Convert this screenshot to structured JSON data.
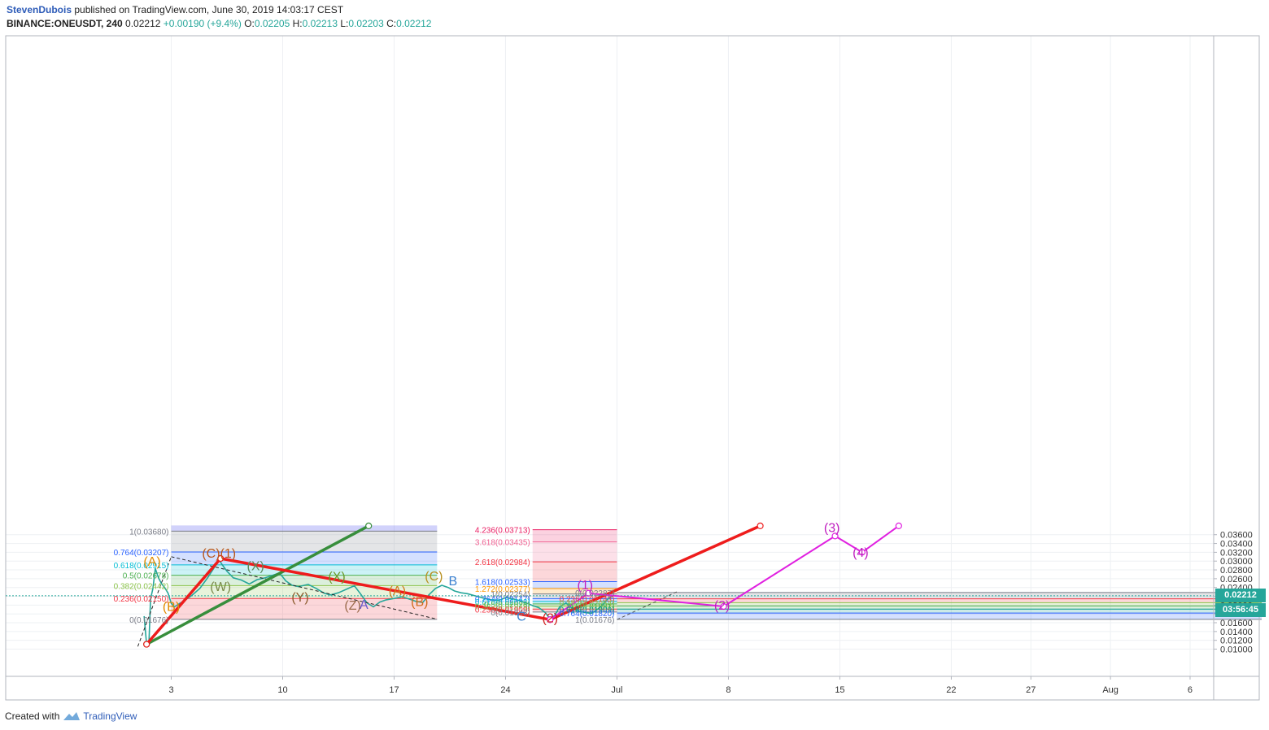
{
  "header": {
    "author": "StevenDubois",
    "published": "published on TradingView.com, June 30, 2019 14:03:17 CEST",
    "symbol": "BINANCE:ONEUSDT, 240",
    "last": "0.02212",
    "change": "+0.00190 (+9.4%)",
    "o_label": "O:",
    "o_value": "0.02205",
    "h_label": "H:",
    "h_value": "0.02213",
    "l_label": "L:",
    "l_value": "0.02203",
    "c_label": "C:",
    "c_value": "0.02212"
  },
  "footer": {
    "created_with": "Created with",
    "brand": "TradingView"
  },
  "price_tag": {
    "price": "0.02212",
    "countdown": "03:56:45",
    "price_color": "#26a69a",
    "countdown_color": "#26a69a"
  },
  "chart_data": {
    "type": "line",
    "title": "",
    "symbol": "BINANCE:ONEUSDT",
    "interval": "240",
    "y_axis": {
      "position": "right",
      "ylim": [
        0.0091,
        0.0381
      ],
      "ticks": [
        "0.03600",
        "0.03400",
        "0.03200",
        "0.03000",
        "0.02800",
        "0.02600",
        "0.02400",
        "0.02200",
        "0.02000",
        "0.01800",
        "0.01600",
        "0.01400",
        "0.01200",
        "0.01000"
      ]
    },
    "x_axis": {
      "ticks": [
        {
          "label": "3",
          "day": 3
        },
        {
          "label": "10",
          "day": 10
        },
        {
          "label": "17",
          "day": 17
        },
        {
          "label": "24",
          "day": 24
        },
        {
          "label": "Jul",
          "day": 31
        },
        {
          "label": "8",
          "day": 38
        },
        {
          "label": "15",
          "day": 45
        },
        {
          "label": "22",
          "day": 52
        },
        {
          "label": "27",
          "day": 57
        },
        {
          "label": "Aug",
          "day": 62
        },
        {
          "label": "6",
          "day": 67
        }
      ]
    },
    "grid": true,
    "last_price_line": 0.02212,
    "price_path": [
      [
        1.3,
        0.0175
      ],
      [
        1.45,
        0.0111
      ],
      [
        1.6,
        0.0115
      ],
      [
        1.7,
        0.0214
      ],
      [
        1.85,
        0.0238
      ],
      [
        2.0,
        0.0283
      ],
      [
        2.2,
        0.0262
      ],
      [
        2.4,
        0.0248
      ],
      [
        2.6,
        0.0239
      ],
      [
        2.8,
        0.0227
      ],
      [
        3.0,
        0.0204
      ],
      [
        3.2,
        0.0196
      ],
      [
        3.5,
        0.0203
      ],
      [
        3.9,
        0.0212
      ],
      [
        4.3,
        0.0222
      ],
      [
        4.8,
        0.0238
      ],
      [
        5.3,
        0.0263
      ],
      [
        5.7,
        0.0285
      ],
      [
        6.0,
        0.0303
      ],
      [
        6.2,
        0.0292
      ],
      [
        6.5,
        0.0277
      ],
      [
        6.9,
        0.0262
      ],
      [
        7.4,
        0.0257
      ],
      [
        7.9,
        0.0248
      ],
      [
        8.4,
        0.0258
      ],
      [
        8.9,
        0.0262
      ],
      [
        9.4,
        0.0268
      ],
      [
        9.8,
        0.0273
      ],
      [
        10.2,
        0.0255
      ],
      [
        10.6,
        0.0245
      ],
      [
        11.0,
        0.0242
      ],
      [
        11.6,
        0.0247
      ],
      [
        12.1,
        0.0238
      ],
      [
        12.6,
        0.0227
      ],
      [
        13.0,
        0.0223
      ],
      [
        13.5,
        0.0228
      ],
      [
        14.0,
        0.0236
      ],
      [
        14.5,
        0.0244
      ],
      [
        14.9,
        0.0225
      ],
      [
        15.3,
        0.0205
      ],
      [
        15.7,
        0.0196
      ],
      [
        16.1,
        0.0207
      ],
      [
        16.5,
        0.0212
      ],
      [
        17.0,
        0.0215
      ],
      [
        17.5,
        0.0219
      ],
      [
        18.0,
        0.0213
      ],
      [
        18.4,
        0.0208
      ],
      [
        18.8,
        0.0206
      ],
      [
        19.2,
        0.0224
      ],
      [
        19.6,
        0.0238
      ],
      [
        20.0,
        0.0245
      ],
      [
        20.4,
        0.024
      ],
      [
        20.8,
        0.0232
      ],
      [
        21.2,
        0.0228
      ],
      [
        21.6,
        0.0226
      ],
      [
        22.1,
        0.0221
      ],
      [
        22.6,
        0.0216
      ],
      [
        23.1,
        0.0212
      ],
      [
        23.6,
        0.0211
      ],
      [
        24.0,
        0.0217
      ],
      [
        24.5,
        0.0214
      ],
      [
        24.9,
        0.021
      ],
      [
        25.3,
        0.0205
      ],
      [
        25.7,
        0.0199
      ],
      [
        26.1,
        0.0194
      ],
      [
        26.5,
        0.0183
      ],
      [
        26.8,
        0.0168
      ],
      [
        27.1,
        0.0177
      ],
      [
        27.4,
        0.0196
      ],
      [
        27.8,
        0.0205
      ],
      [
        28.2,
        0.0192
      ],
      [
        28.6,
        0.0186
      ],
      [
        29.0,
        0.0183
      ],
      [
        29.4,
        0.0181
      ],
      [
        29.8,
        0.0191
      ],
      [
        30.1,
        0.0201
      ],
      [
        30.4,
        0.0213
      ],
      [
        30.7,
        0.0221
      ]
    ],
    "fib_retracement_1": {
      "range_days": [
        3,
        19.7
      ],
      "levels": [
        {
          "label": "1(0.03680)",
          "price": 0.0368,
          "color": "#787b86"
        },
        {
          "label": "0.764(0.03207)",
          "price": 0.03207,
          "color": "#2962ff"
        },
        {
          "label": "0.618(0.02915)",
          "price": 0.02915,
          "color": "#00bcd4"
        },
        {
          "label": "0.5(0.02678)",
          "price": 0.02678,
          "color": "#4caf50"
        },
        {
          "label": "0.382(0.02442)",
          "price": 0.02442,
          "color": "#8bc34a"
        },
        {
          "label": "0.236(0.02150)",
          "price": 0.0215,
          "color": "#f23645"
        },
        {
          "label": "0(0.01676)",
          "price": 0.01676,
          "color": "#787b86"
        }
      ]
    },
    "fib_extension_right": {
      "range_days": [
        25.7,
        31.0
      ],
      "levels": [
        {
          "label": "4.236(0.03713)",
          "price": 0.03713,
          "color": "#e91e63"
        },
        {
          "label": "3.618(0.03435)",
          "price": 0.03435,
          "color": "#f06292"
        },
        {
          "label": "2.618(0.02984)",
          "price": 0.02984,
          "color": "#f23645"
        },
        {
          "label": "1.618(0.02533)",
          "price": 0.02533,
          "color": "#2962ff"
        },
        {
          "label": "1.272(0.02377)",
          "price": 0.02377,
          "color": "#ff9800"
        },
        {
          "label": "1(0.02254)",
          "price": 0.02254,
          "color": "#787b86"
        },
        {
          "label": "0.764(0.02147)",
          "price": 0.02147,
          "color": "#2962ff"
        },
        {
          "label": "0.618(0.02082)",
          "price": 0.02082,
          "color": "#00bcd4"
        },
        {
          "label": "0.5(0.02028)",
          "price": 0.02028,
          "color": "#4caf50"
        },
        {
          "label": "0.382(0.01975)",
          "price": 0.01975,
          "color": "#8bc34a"
        },
        {
          "label": "0.236(0.01909)",
          "price": 0.01909,
          "color": "#f23645"
        },
        {
          "label": "0(0.01843)",
          "price": 0.01843,
          "color": "#787b86"
        }
      ]
    },
    "fib_retracement_2": {
      "range_days": [
        31.0,
        71.5
      ],
      "levels": [
        {
          "label": "0(0.02287)",
          "price": 0.02287,
          "color": "#787b86"
        },
        {
          "label": "0.236(0.02143)",
          "price": 0.02143,
          "color": "#f23645"
        },
        {
          "label": "0.382(0.02054)",
          "price": 0.02054,
          "color": "#8bc34a"
        },
        {
          "label": "0.5(0.01981)",
          "price": 0.01981,
          "color": "#4caf50"
        },
        {
          "label": "0.618(0.01909)",
          "price": 0.01909,
          "color": "#009688"
        },
        {
          "label": "0.764(0.01820)",
          "price": 0.0182,
          "color": "#2962ff"
        },
        {
          "label": "1(0.01676)",
          "price": 0.01676,
          "color": "#787b86"
        }
      ]
    },
    "trend_lines": [
      {
        "name": "green",
        "color": "#388e3c",
        "points": [
          [
            1.45,
            0.0111
          ],
          [
            15.4,
            0.038
          ]
        ]
      },
      {
        "name": "red",
        "color": "#ee1c1c",
        "points": [
          [
            1.45,
            0.0111
          ],
          [
            6.1,
            0.0306
          ],
          [
            26.8,
            0.0167
          ],
          [
            40.0,
            0.038
          ]
        ]
      },
      {
        "name": "magenta",
        "color": "#e020e0",
        "points": [
          [
            26.8,
            0.0167
          ],
          [
            29.2,
            0.0227
          ],
          [
            37.7,
            0.0197
          ],
          [
            44.7,
            0.0357
          ],
          [
            46.4,
            0.032
          ],
          [
            48.7,
            0.038
          ]
        ]
      }
    ],
    "wave_labels": [
      {
        "text": "(C)(1)",
        "day": 6.0,
        "price": 0.0308,
        "color": "#b8561a"
      },
      {
        "text": "(A)",
        "day": 1.8,
        "price": 0.0289,
        "color": "#e08a00"
      },
      {
        "text": "(B)",
        "day": 3.0,
        "price": 0.0187,
        "color": "#e08a00"
      },
      {
        "text": "(X)",
        "day": 8.3,
        "price": 0.0279,
        "color": "#5a8a5a"
      },
      {
        "text": "(W)",
        "day": 6.1,
        "price": 0.0232,
        "color": "#7a8a4a"
      },
      {
        "text": "(X)",
        "day": 13.4,
        "price": 0.0255,
        "color": "#6b9a2a"
      },
      {
        "text": "(Y)",
        "day": 11.1,
        "price": 0.0208,
        "color": "#8b5a2b"
      },
      {
        "text": "(Z)",
        "day": 14.4,
        "price": 0.019,
        "color": "#9a6a4a"
      },
      {
        "text": "A",
        "day": 15.1,
        "price": 0.0191,
        "color": "#6a5acd"
      },
      {
        "text": "(A)",
        "day": 17.2,
        "price": 0.0223,
        "color": "#d07a1a"
      },
      {
        "text": "(B)",
        "day": 18.6,
        "price": 0.0198,
        "color": "#d06a1a"
      },
      {
        "text": "(C)",
        "day": 19.5,
        "price": 0.0256,
        "color": "#b89020"
      },
      {
        "text": "B",
        "day": 20.7,
        "price": 0.0245,
        "color": "#3a80d0"
      },
      {
        "text": "C",
        "day": 25.0,
        "price": 0.0165,
        "color": "#3a80d0"
      },
      {
        "text": "(2)",
        "day": 26.8,
        "price": 0.0161,
        "color": "#d02020"
      },
      {
        "text": "(1)",
        "day": 29.0,
        "price": 0.0236,
        "color": "#c020c0"
      },
      {
        "text": "(2)",
        "day": 37.6,
        "price": 0.019,
        "color": "#c020c0"
      },
      {
        "text": "(3)",
        "day": 44.5,
        "price": 0.0366,
        "color": "#c020c0"
      },
      {
        "text": "(4)",
        "day": 46.3,
        "price": 0.031,
        "color": "#c020c0"
      }
    ]
  }
}
